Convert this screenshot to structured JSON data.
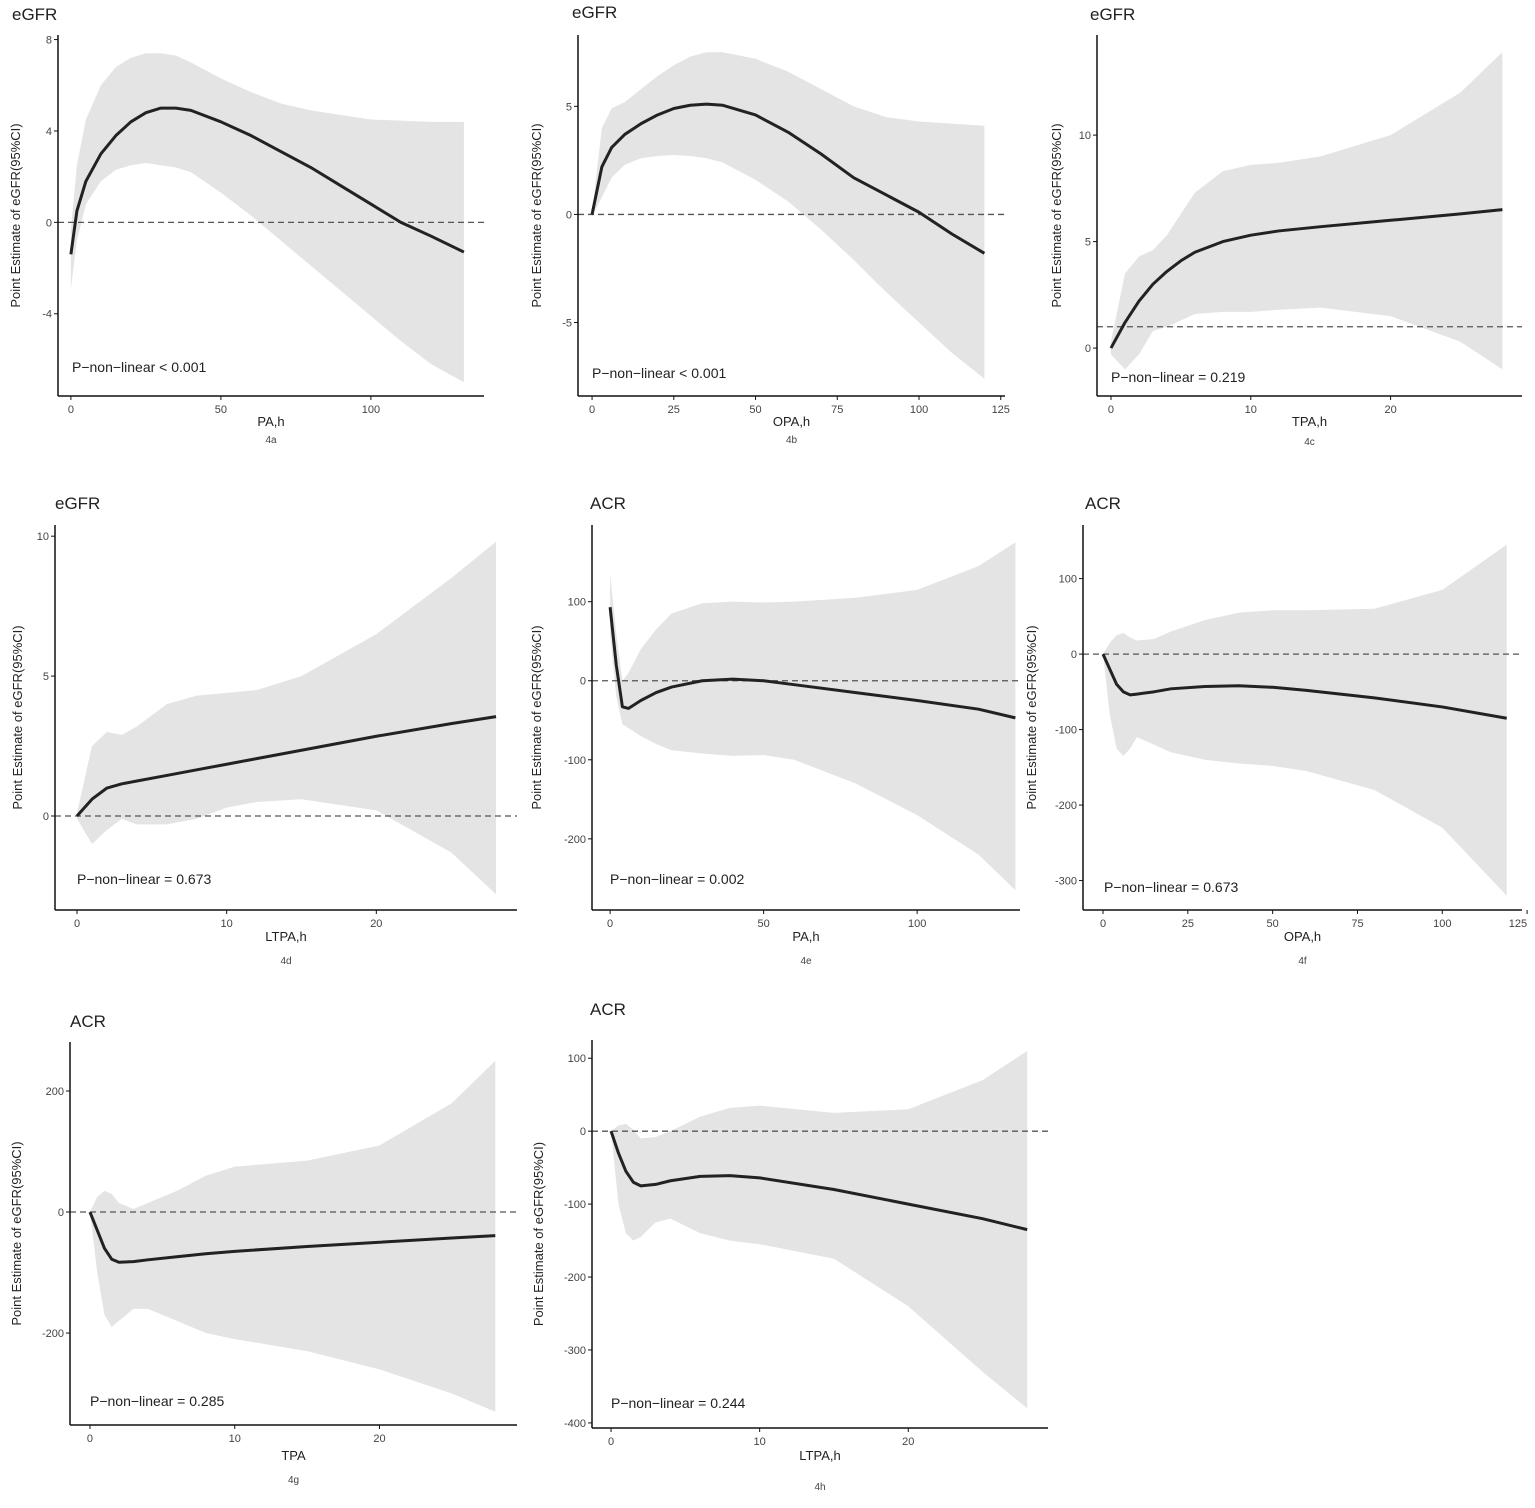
{
  "chart_data": [
    {
      "type": "line",
      "title": "eGFR",
      "y_label": "Point Estimate of eGFR(95%CI)",
      "x_label": "PA,h",
      "panel_label": "4a",
      "annotation": "P−non−linear < 0.001",
      "x": [
        0,
        2,
        5,
        10,
        15,
        20,
        25,
        30,
        35,
        40,
        50,
        60,
        70,
        80,
        90,
        100,
        110,
        120,
        131
      ],
      "series": [
        {
          "color": "#222222",
          "band_color": "#e4e4e4",
          "values": [
            -1.4,
            0.5,
            1.8,
            3.0,
            3.8,
            4.4,
            4.8,
            5.0,
            5.0,
            4.9,
            4.4,
            3.8,
            3.1,
            2.4,
            1.6,
            0.8,
            0.0,
            -0.6,
            -1.3
          ],
          "upper": [
            -0.3,
            2.5,
            4.5,
            6.0,
            6.8,
            7.2,
            7.4,
            7.4,
            7.3,
            7.0,
            6.3,
            5.7,
            5.2,
            4.9,
            4.7,
            4.5,
            4.45,
            4.4,
            4.4
          ],
          "lower": [
            -2.9,
            -0.8,
            0.8,
            1.8,
            2.3,
            2.5,
            2.6,
            2.5,
            2.4,
            2.2,
            1.3,
            0.3,
            -0.8,
            -1.9,
            -3.0,
            -4.1,
            -5.2,
            -6.2,
            -7.0
          ]
        }
      ],
      "reference_line": 0,
      "xlim": [
        -4.3,
        137.7
      ],
      "ylim": [
        -7.6,
        8.2
      ],
      "xticks": [
        0,
        50,
        100
      ],
      "yticks": [
        -4,
        0,
        4,
        8
      ]
    },
    {
      "type": "line",
      "title": "eGFR",
      "y_label": "Point Estimate of eGFR(95%CI)",
      "x_label": "OPA,h",
      "panel_label": "4b",
      "annotation": "P−non−linear < 0.001",
      "x": [
        0,
        3,
        6,
        10,
        15,
        20,
        25,
        30,
        35,
        40,
        50,
        60,
        70,
        80,
        90,
        100,
        110,
        120
      ],
      "series": [
        {
          "color": "#222222",
          "band_color": "#e4e4e4",
          "values": [
            0,
            2.2,
            3.1,
            3.7,
            4.2,
            4.6,
            4.9,
            5.05,
            5.1,
            5.05,
            4.6,
            3.8,
            2.8,
            1.7,
            0.9,
            0.1,
            -0.9,
            -1.8
          ],
          "upper": [
            0.1,
            4.0,
            4.9,
            5.2,
            5.8,
            6.4,
            6.9,
            7.3,
            7.5,
            7.5,
            7.2,
            6.6,
            5.8,
            5.0,
            4.5,
            4.3,
            4.2,
            4.1
          ],
          "lower": [
            -0.1,
            0.8,
            1.7,
            2.3,
            2.6,
            2.7,
            2.75,
            2.7,
            2.6,
            2.4,
            1.6,
            0.6,
            -0.7,
            -2.1,
            -3.6,
            -5.0,
            -6.4,
            -7.6
          ]
        }
      ],
      "reference_line": 0,
      "xlim": [
        -4.3,
        126.3
      ],
      "ylim": [
        -8.4,
        8.3
      ],
      "xticks": [
        0,
        25,
        50,
        75,
        100,
        125
      ],
      "yticks": [
        -5,
        0,
        5
      ]
    },
    {
      "type": "line",
      "title": "eGFR",
      "y_label": "Point Estimate of eGFR(95%CI)",
      "x_label": "TPA,h",
      "panel_label": "4c",
      "annotation": "P−non−linear = 0.219",
      "x": [
        0,
        1,
        2,
        3,
        4,
        5,
        6,
        8,
        10,
        12,
        15,
        20,
        25,
        28
      ],
      "series": [
        {
          "color": "#222222",
          "band_color": "#e4e4e4",
          "values": [
            0,
            1.2,
            2.2,
            3.0,
            3.6,
            4.1,
            4.5,
            5.0,
            5.3,
            5.5,
            5.7,
            6.0,
            6.3,
            6.5
          ],
          "upper": [
            0.3,
            3.5,
            4.3,
            4.6,
            5.3,
            6.3,
            7.3,
            8.3,
            8.6,
            8.7,
            9.0,
            10.0,
            12.0,
            13.9
          ],
          "lower": [
            -0.3,
            -1.0,
            -0.3,
            0.8,
            1.0,
            1.3,
            1.6,
            1.7,
            1.7,
            1.8,
            1.9,
            1.5,
            0.3,
            -1.0
          ]
        }
      ],
      "reference_line": 1,
      "xlim": [
        -1.0,
        29.4
      ],
      "ylim": [
        -2.25,
        14.7
      ],
      "xticks": [
        0,
        10,
        20
      ],
      "yticks": [
        0,
        5,
        10
      ]
    },
    {
      "type": "line",
      "title": "eGFR",
      "y_label": "Point Estimate of eGFR(95%CI)",
      "x_label": "LTPA,h",
      "panel_label": "4d",
      "annotation": "P−non−linear = 0.673",
      "x": [
        0,
        1,
        2,
        3,
        4,
        6,
        8,
        10,
        12,
        15,
        20,
        25,
        28
      ],
      "series": [
        {
          "color": "#222222",
          "band_color": "#e4e4e4",
          "values": [
            0,
            0.6,
            1.0,
            1.15,
            1.25,
            1.45,
            1.65,
            1.85,
            2.05,
            2.35,
            2.85,
            3.3,
            3.55
          ],
          "upper": [
            0.1,
            2.5,
            3.0,
            2.9,
            3.2,
            4.0,
            4.3,
            4.4,
            4.5,
            5.0,
            6.5,
            8.5,
            9.8
          ],
          "lower": [
            -0.1,
            -1.0,
            -0.5,
            -0.1,
            -0.3,
            -0.3,
            -0.1,
            0.3,
            0.5,
            0.6,
            0.2,
            -1.3,
            -2.8
          ]
        }
      ],
      "reference_line": 0,
      "xlim": [
        -1.47,
        29.4
      ],
      "ylim": [
        -3.36,
        10.4
      ],
      "xticks": [
        0,
        10,
        20
      ],
      "yticks": [
        0,
        5,
        10
      ]
    },
    {
      "type": "line",
      "title": "ACR",
      "y_label": "Point Estimate of eGFR(95%CI)",
      "x_label": "PA,h",
      "panel_label": "4e",
      "annotation": "P−non−linear = 0.002",
      "x": [
        0,
        2,
        4,
        6,
        10,
        15,
        20,
        30,
        40,
        50,
        60,
        80,
        100,
        120,
        132
      ],
      "series": [
        {
          "color": "#222222",
          "band_color": "#e4e4e4",
          "values": [
            93,
            20,
            -33,
            -35,
            -25,
            -15,
            -8,
            0,
            2,
            0,
            -5,
            -15,
            -25,
            -36,
            -47
          ],
          "upper": [
            135,
            60,
            0,
            10,
            40,
            65,
            85,
            98,
            100,
            99,
            100,
            105,
            115,
            145,
            175
          ],
          "lower": [
            60,
            -20,
            -55,
            -60,
            -70,
            -80,
            -88,
            -92,
            -95,
            -94,
            -100,
            -130,
            -170,
            -220,
            -265
          ]
        }
      ],
      "reference_line": 0,
      "xlim": [
        -5.9,
        133.5
      ],
      "ylim": [
        -290,
        197
      ],
      "xticks": [
        0,
        50,
        100
      ],
      "yticks": [
        -200,
        -100,
        0,
        100
      ]
    },
    {
      "type": "line",
      "title": "ACR",
      "y_label": "Point Estimate of eGFR(95%CI)",
      "x_label": "OPA,h",
      "panel_label": "4f",
      "annotation": "P−non−linear = 0.673",
      "x": [
        0,
        2,
        4,
        6,
        8,
        10,
        15,
        20,
        30,
        40,
        50,
        60,
        80,
        100,
        119
      ],
      "series": [
        {
          "color": "#222222",
          "band_color": "#e4e4e4",
          "values": [
            0,
            -20,
            -40,
            -50,
            -54,
            -53,
            -50,
            -46,
            -43,
            -42,
            -44,
            -48,
            -58,
            -70,
            -85
          ],
          "upper": [
            0,
            15,
            25,
            28,
            22,
            18,
            20,
            30,
            45,
            55,
            58,
            58,
            60,
            85,
            145
          ],
          "lower": [
            0,
            -80,
            -125,
            -135,
            -125,
            -110,
            -120,
            -130,
            -140,
            -145,
            -148,
            -155,
            -180,
            -230,
            -320
          ]
        }
      ],
      "reference_line": 0,
      "xlim": [
        -5.9,
        123.5
      ],
      "ylim": [
        -339,
        171
      ],
      "xticks": [
        0,
        25,
        50,
        75,
        100,
        125
      ],
      "yticks": [
        -300,
        -200,
        -100,
        0,
        100
      ]
    },
    {
      "type": "line",
      "title": "ACR",
      "y_label": "Point Estimate of eGFR(95%CI)",
      "x_label": "TPA",
      "panel_label": "4g",
      "annotation": "P−non−linear = 0.285",
      "x": [
        0,
        0.5,
        1,
        1.5,
        2,
        3,
        4,
        6,
        8,
        10,
        15,
        20,
        25,
        28
      ],
      "series": [
        {
          "color": "#222222",
          "band_color": "#e4e4e4",
          "values": [
            0,
            -30,
            -60,
            -78,
            -83,
            -82,
            -79,
            -74,
            -69,
            -65,
            -57,
            -50,
            -43,
            -39
          ],
          "upper": [
            0,
            25,
            35,
            30,
            15,
            5,
            15,
            35,
            60,
            75,
            85,
            110,
            180,
            250
          ],
          "lower": [
            0,
            -100,
            -170,
            -190,
            -180,
            -160,
            -160,
            -180,
            -200,
            -210,
            -230,
            -260,
            -300,
            -330
          ]
        }
      ],
      "reference_line": 0,
      "xlim": [
        -1.38,
        29.5
      ],
      "ylim": [
        -352,
        281
      ],
      "xticks": [
        0,
        10,
        20
      ],
      "yticks": [
        -200,
        0,
        200
      ]
    },
    {
      "type": "line",
      "title": "ACR",
      "y_label": "Point Estimate of eGFR(95%CI)",
      "x_label": "LTPA,h",
      "panel_label": "4h",
      "annotation": "P−non−linear = 0.244",
      "x": [
        0,
        0.5,
        1,
        1.5,
        2,
        3,
        4,
        6,
        8,
        10,
        15,
        20,
        25,
        28
      ],
      "series": [
        {
          "color": "#222222",
          "band_color": "#e4e4e4",
          "values": [
            0,
            -30,
            -55,
            -70,
            -75,
            -73,
            -68,
            -62,
            -61,
            -64,
            -80,
            -100,
            -120,
            -135
          ],
          "upper": [
            0,
            8,
            10,
            2,
            -10,
            -8,
            0,
            20,
            32,
            35,
            25,
            30,
            70,
            110
          ],
          "lower": [
            0,
            -100,
            -140,
            -150,
            -145,
            -125,
            -120,
            -140,
            -150,
            -155,
            -175,
            -240,
            -330,
            -380
          ]
        }
      ],
      "reference_line": 0,
      "xlim": [
        -1.28,
        29.4
      ],
      "ylim": [
        -407,
        125
      ],
      "xticks": [
        0,
        10,
        20
      ],
      "yticks": [
        -400,
        -300,
        -200,
        -100,
        0,
        100
      ]
    }
  ]
}
